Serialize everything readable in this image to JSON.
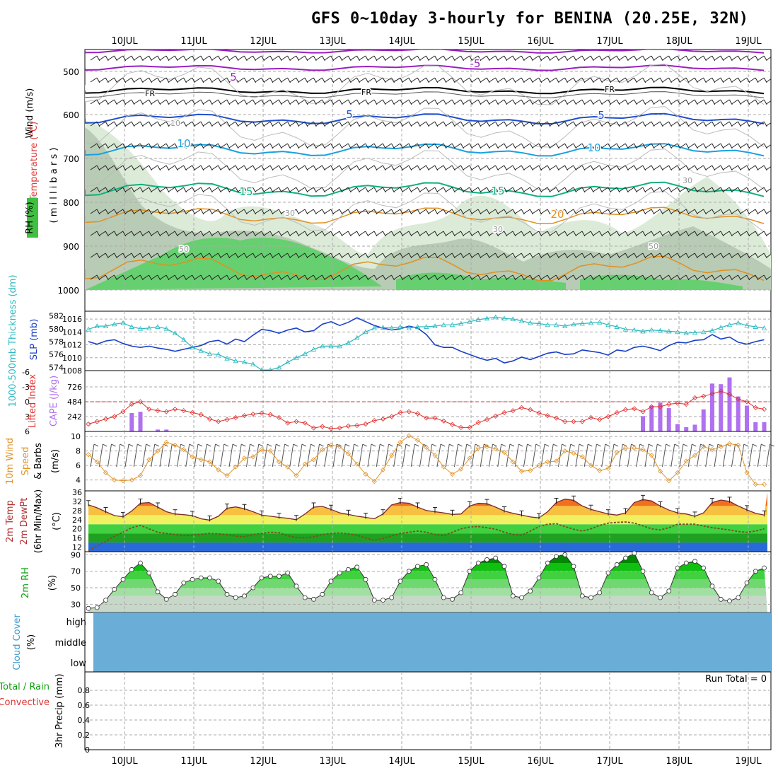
{
  "title": "GFS 0~10day 3-hourly for BENINA (20.25E, 32N)",
  "dates": [
    "10JUL",
    "11JUL",
    "12JUL",
    "13JUL",
    "14JUL",
    "15JUL",
    "16JUL",
    "17JUL",
    "18JUL",
    "19JUL"
  ],
  "colors": {
    "temp_purple": "#9a1fc0",
    "temp_black": "#000000",
    "temp_blue": "#1f4fd0",
    "temp_cyan": "#1aa0e0",
    "temp_green": "#10b080",
    "temp_orange": "#e09020",
    "rh_light": "#dcebd8",
    "rh_mid": "#b8cbb4",
    "rh_green": "#66d070",
    "slp": "#1a3fc8",
    "thickness": "#2ab8c0",
    "lifted": "#e03030",
    "cape": "#b070f0",
    "wind": "#e0942a",
    "tempfill_hot": "#f06010",
    "tempfill_warm": "#f8c040",
    "dewpt": "#a0303a",
    "rh2m": "#10c010",
    "cloud": "#6aaed8"
  },
  "panel_labels": {
    "upper_wind": "Wind (m/s)",
    "upper_temp": "Temperature (°C)",
    "upper_rh": "RH (%)",
    "upper_mb": "( m i l l i b a r s )",
    "slp": "SLP (mb)",
    "thickness": "1000-500mb Thickness (dm)",
    "cape": "CAPE (J/kg)",
    "lifted": "Lifted Index",
    "wind10m_a": "10m Wind",
    "wind10m_b": "Speed",
    "wind10m_c": "& Barbs",
    "wind10m_unit": "(m/s)",
    "temp_a": "2m Temp",
    "temp_b": "2m DewPt",
    "temp_c": "(6hr Min/Max)",
    "temp_unit": "(°C)",
    "rh2m": "2m RH",
    "rh2m_unit": "(%)",
    "cloud": "Cloud Cover",
    "cloud_unit": "(%)",
    "precip_a": "Total / Rain",
    "precip_b": "Convective",
    "precip_c": "3hr Precip (mm)",
    "run_total": "Run Total = 0"
  },
  "upper_air": {
    "pressure_ticks": [
      "500",
      "600",
      "700",
      "800",
      "900",
      "1000"
    ],
    "contour_labels": [
      "-5",
      "5",
      "FR",
      "FR",
      "FR",
      "FR",
      "5",
      "5",
      "10",
      "10",
      "15",
      "15",
      "20",
      "10",
      "30",
      "30",
      "50",
      "50",
      "30"
    ]
  },
  "slp_axis": [
    "1016",
    "1014",
    "1012",
    "1010",
    "1008"
  ],
  "thickness_axis": [
    "582",
    "580",
    "578",
    "576",
    "574"
  ],
  "cape_axis": [
    "726",
    "484",
    "242"
  ],
  "lifted_axis": [
    "-3",
    "0",
    "3",
    "6",
    "-6"
  ],
  "wind_axis": [
    "10",
    "8",
    "6",
    "4"
  ],
  "temp_axis": [
    "36",
    "32",
    "28",
    "24",
    "20",
    "16",
    "12"
  ],
  "rh_axis": [
    "90",
    "70",
    "50",
    "30"
  ],
  "cloud_levels": [
    "high",
    "middle",
    "low"
  ],
  "precip_axis": [
    "0.8",
    "0.6",
    "0.4",
    "0.2",
    "0"
  ],
  "chart_data": [
    {
      "type": "line",
      "name": "Sea level pressure",
      "ylabel": "SLP (mb)",
      "ylim": [
        1008,
        1017
      ],
      "x_step_hours": 3,
      "values": [
        1012.5,
        1012.1,
        1012.6,
        1012.8,
        1012.2,
        1011.8,
        1011.6,
        1011.8,
        1011.5,
        1011.3,
        1011.0,
        1011.3,
        1011.6,
        1011.9,
        1012.5,
        1012.7,
        1012.1,
        1012.9,
        1012.5,
        1013.5,
        1014.4,
        1014.2,
        1013.8,
        1014.3,
        1014.6,
        1014.0,
        1014.2,
        1015.2,
        1015.6,
        1015.0,
        1015.5,
        1016.2,
        1015.6,
        1015.0,
        1014.6,
        1014.3,
        1014.5,
        1014.9,
        1014.6,
        1013.6,
        1012.0,
        1011.6,
        1011.6,
        1011.0,
        1010.5,
        1010.0,
        1009.6,
        1009.9,
        1009.2,
        1009.5,
        1010.1,
        1009.7,
        1010.2,
        1010.7,
        1010.9,
        1010.5,
        1010.6,
        1011.2,
        1011.0,
        1010.8,
        1010.4,
        1011.2,
        1011.0,
        1011.6,
        1011.8,
        1011.5,
        1011.1,
        1011.9,
        1012.4,
        1012.3,
        1012.7,
        1012.8,
        1013.6,
        1012.9,
        1013.2,
        1012.4,
        1012.1,
        1012.5,
        1012.8
      ]
    },
    {
      "type": "line",
      "name": "1000-500mb thickness",
      "ylabel": "Thickness (dm)",
      "ylim": [
        573.5,
        582.5
      ],
      "x_step_hours": 3,
      "values": [
        579.9,
        580.4,
        580.4,
        580.7,
        580.9,
        580.3,
        580.0,
        580.1,
        580.3,
        580.0,
        579.3,
        578.3,
        577.1,
        576.6,
        576.1,
        576.0,
        575.4,
        575.0,
        574.8,
        574.5,
        573.6,
        573.6,
        574.0,
        574.8,
        575.5,
        576.1,
        576.8,
        577.3,
        577.3,
        577.3,
        577.8,
        578.6,
        579.5,
        580.1,
        580.2,
        580.1,
        580.3,
        580.1,
        580.3,
        580.3,
        580.4,
        580.6,
        580.6,
        580.8,
        581.1,
        581.4,
        581.6,
        581.8,
        581.6,
        581.5,
        581.2,
        580.9,
        580.8,
        580.6,
        580.6,
        580.4,
        580.7,
        580.8,
        580.9,
        581.0,
        580.6,
        580.3,
        579.9,
        579.8,
        579.6,
        579.8,
        579.7,
        579.6,
        579.5,
        579.3,
        579.4,
        579.5,
        579.7,
        580.2,
        580.6,
        580.9,
        580.5,
        580.3,
        580.1
      ]
    },
    {
      "type": "bar",
      "name": "CAPE",
      "ylabel": "CAPE (J/kg)",
      "ylim": [
        0,
        968
      ],
      "x_step_hours": 3,
      "values": [
        0,
        0,
        0,
        0,
        0,
        300,
        320,
        0,
        30,
        30,
        0,
        0,
        0,
        0,
        0,
        0,
        0,
        0,
        0,
        0,
        0,
        0,
        0,
        0,
        0,
        0,
        0,
        0,
        0,
        0,
        0,
        0,
        0,
        0,
        0,
        0,
        0,
        0,
        0,
        0,
        0,
        0,
        0,
        0,
        0,
        0,
        0,
        0,
        0,
        0,
        0,
        0,
        0,
        0,
        0,
        0,
        0,
        0,
        0,
        0,
        0,
        0,
        0,
        0,
        250,
        420,
        470,
        380,
        120,
        70,
        110,
        360,
        780,
        770,
        880,
        570,
        420,
        150,
        150,
        200,
        630,
        840,
        580,
        280,
        110,
        0,
        0,
        0,
        60,
        130,
        60,
        0,
        0
      ]
    },
    {
      "type": "line",
      "name": "Lifted Index",
      "ylabel": "Lifted Index",
      "ylim": [
        6,
        -6
      ],
      "x_step_hours": 3,
      "values": [
        4.5,
        4.0,
        3.5,
        3.0,
        2.0,
        0.5,
        0.0,
        1.5,
        1.8,
        2.0,
        1.5,
        1.8,
        2.2,
        2.6,
        3.5,
        4.0,
        3.6,
        3.2,
        2.8,
        2.5,
        2.3,
        2.6,
        3.2,
        4.3,
        4.0,
        4.3,
        5.3,
        5.0,
        5.4,
        5.3,
        4.9,
        4.8,
        4.5,
        3.8,
        3.5,
        3.0,
        2.2,
        2.0,
        2.4,
        3.3,
        3.3,
        3.9,
        4.6,
        5.2,
        5.2,
        4.2,
        3.6,
        2.9,
        2.2,
        1.8,
        1.2,
        1.6,
        2.3,
        2.8,
        3.3,
        4.0,
        4.0,
        4.0,
        3.2,
        3.6,
        3.0,
        2.2,
        1.6,
        1.4,
        2.0,
        1.0,
        1.0,
        0.5,
        0.3,
        0.5,
        -0.8,
        -1.1,
        -1.6,
        -2.1,
        -1.5,
        -0.5,
        0.0,
        1.2,
        1.5,
        0.6,
        -1.2,
        -2.8,
        -3.5,
        -2.5,
        -0.8,
        0.5,
        1.3,
        1.8,
        2.0,
        1.0,
        0.2,
        1.0,
        1.8,
        2.8,
        3.7,
        3.5,
        3.7
      ]
    },
    {
      "type": "line",
      "name": "10m wind speed",
      "ylabel": "Speed (m/s)",
      "ylim": [
        2.5,
        10.5
      ],
      "x_step_hours": 3,
      "values": [
        7.5,
        6.5,
        5.0,
        4.0,
        3.9,
        4.0,
        4.6,
        6.8,
        8.0,
        9.2,
        8.8,
        8.2,
        7.2,
        6.8,
        6.5,
        5.4,
        4.6,
        5.8,
        7.0,
        7.2,
        8.2,
        8.0,
        6.5,
        5.8,
        4.6,
        6.2,
        6.8,
        8.2,
        8.8,
        8.6,
        7.6,
        6.2,
        4.8,
        3.8,
        5.4,
        7.4,
        9.2,
        10.1,
        9.5,
        8.5,
        7.4,
        5.8,
        4.8,
        5.5,
        7.0,
        8.4,
        8.6,
        8.3,
        7.8,
        6.5,
        5.2,
        5.3,
        6.0,
        6.5,
        6.6,
        8.0,
        7.7,
        7.2,
        6.0,
        5.3,
        5.6,
        7.8,
        8.4,
        8.4,
        8.2,
        7.4,
        5.2,
        3.9,
        5.0,
        6.6,
        7.4,
        8.6,
        8.2,
        8.6,
        9.0,
        8.8,
        5.0,
        3.4,
        3.4,
        3.4,
        5.5,
        7.6,
        8.8,
        8.2,
        6.8,
        6.0,
        5.0,
        3.6,
        3.2,
        4.4
      ]
    },
    {
      "type": "area",
      "name": "2m temperature",
      "ylabel": "2m Temp (°C)",
      "ylim": [
        10,
        36
      ],
      "x_step_hours": 3,
      "values": [
        30.5,
        29.2,
        27.5,
        25.8,
        25.3,
        27.8,
        31.2,
        31.5,
        29.5,
        27.5,
        26.5,
        26.2,
        25.8,
        24.4,
        23.8,
        25.5,
        29.0,
        29.6,
        28.8,
        27.5,
        26.0,
        25.5,
        25.0,
        24.6,
        24.0,
        26.5,
        29.5,
        29.8,
        28.5,
        27.0,
        26.3,
        25.5,
        25.0,
        24.4,
        26.5,
        30.5,
        31.5,
        31.2,
        29.5,
        28.0,
        27.5,
        27.0,
        26.3,
        26.5,
        30.0,
        31.2,
        31.0,
        29.5,
        27.8,
        26.8,
        26.0,
        25.2,
        24.8,
        27.5,
        31.5,
        33.0,
        32.5,
        30.0,
        28.5,
        27.5,
        26.5,
        26.0,
        27.0,
        31.5,
        32.8,
        32.2,
        30.0,
        28.2,
        27.0,
        26.5,
        25.5,
        27.0,
        31.5,
        32.6,
        32.0,
        30.0,
        28.3,
        26.8,
        26.0,
        24.5,
        23.8,
        26.8
      ]
    },
    {
      "type": "line",
      "name": "2m dew point",
      "ylabel": "2m DewPt (°C)",
      "ylim": [
        10,
        36
      ],
      "x_step_hours": 3,
      "values": [
        10.5,
        12.5,
        14.5,
        16.8,
        18.5,
        20.5,
        21.5,
        20.0,
        18.5,
        18.0,
        17.5,
        17.0,
        17.2,
        17.6,
        18.0,
        17.8,
        17.5,
        16.8,
        16.5,
        17.5,
        18.0,
        18.5,
        18.3,
        17.0,
        16.2,
        16.0,
        16.5,
        17.5,
        18.0,
        18.2,
        17.8,
        17.2,
        16.0,
        15.0,
        15.8,
        17.0,
        18.0,
        18.5,
        19.0,
        18.5,
        17.5,
        17.0,
        18.5,
        20.0,
        20.8,
        21.0,
        20.5,
        19.8,
        18.5,
        17.5,
        17.2,
        19.0,
        21.0,
        22.0,
        22.3,
        21.0,
        19.8,
        19.0,
        20.0,
        21.5,
        22.5,
        22.8,
        23.0,
        22.5,
        21.3,
        20.0,
        19.5,
        20.5,
        22.0,
        22.0,
        22.0,
        21.2,
        20.5,
        20.0,
        19.5,
        18.8,
        18.5,
        19.0,
        20.0,
        21.0,
        21.2,
        20.5,
        19.8,
        19.5
      ]
    },
    {
      "type": "area",
      "name": "2m relative humidity",
      "ylabel": "2m RH (%)",
      "ylim": [
        20,
        92
      ],
      "x_step_hours": 3,
      "values": [
        25,
        26,
        35,
        48,
        60,
        72,
        80,
        68,
        45,
        36,
        42,
        56,
        60,
        62,
        62,
        58,
        42,
        38,
        40,
        50,
        62,
        64,
        64,
        68,
        52,
        38,
        36,
        42,
        58,
        68,
        72,
        75,
        60,
        35,
        35,
        38,
        58,
        70,
        76,
        78,
        60,
        38,
        36,
        44,
        70,
        80,
        84,
        86,
        76,
        40,
        38,
        46,
        62,
        80,
        88,
        90,
        76,
        40,
        38,
        44,
        68,
        78,
        86,
        92,
        70,
        44,
        38,
        46,
        74,
        80,
        82,
        74,
        52,
        36,
        34,
        38,
        56,
        70,
        74,
        76,
        74,
        60
      ]
    },
    {
      "type": "bar",
      "name": "3hr precipitation",
      "ylabel": "3hr Precip (mm)",
      "ylim": [
        0,
        1.0
      ],
      "x_step_hours": 3,
      "values": [
        0,
        0,
        0,
        0,
        0,
        0,
        0,
        0,
        0,
        0,
        0,
        0,
        0,
        0,
        0,
        0,
        0,
        0,
        0,
        0,
        0,
        0,
        0,
        0,
        0,
        0,
        0,
        0,
        0,
        0,
        0,
        0,
        0,
        0,
        0,
        0,
        0,
        0,
        0,
        0,
        0,
        0,
        0,
        0,
        0,
        0,
        0,
        0,
        0,
        0,
        0,
        0,
        0,
        0,
        0,
        0,
        0,
        0,
        0,
        0,
        0,
        0,
        0,
        0,
        0,
        0,
        0,
        0,
        0,
        0,
        0,
        0,
        0,
        0,
        0,
        0,
        0,
        0,
        0,
        0,
        0
      ]
    }
  ]
}
